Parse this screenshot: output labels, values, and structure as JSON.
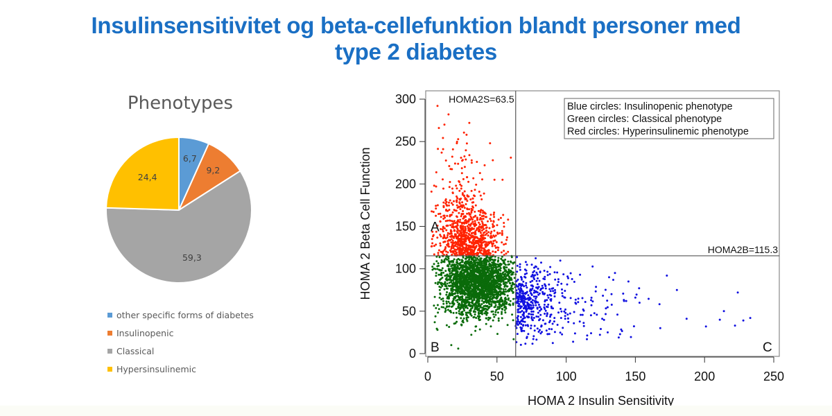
{
  "page": {
    "title_line1": "Insulinsensitivitet og beta-cellefunktion blandt personer med",
    "title_line2": "type 2 diabetes"
  },
  "chart_data": [
    {
      "type": "pie",
      "title": "Phenotypes",
      "start_angle_deg": 0,
      "direction": "clockwise",
      "slices": [
        {
          "label": "other specific forms of diabetes",
          "value": 6.7,
          "display": "6,7",
          "color": "#5b9bd5"
        },
        {
          "label": "Insulinopenic",
          "value": 9.2,
          "display": "9,2",
          "color": "#ed7d31"
        },
        {
          "label": "Classical",
          "value": 59.3,
          "display": "59,3",
          "color": "#a5a5a5"
        },
        {
          "label": "Hypersinsulinemic",
          "value": 24.4,
          "display": "24,4",
          "color": "#ffc000"
        }
      ],
      "legend_position": "bottom"
    },
    {
      "type": "scatter",
      "xlabel": "HOMA 2 Insulin Sensitivity",
      "ylabel": "HOMA 2 Beta Cell Function",
      "xlim": [
        0,
        250
      ],
      "ylim": [
        0,
        300
      ],
      "xticks": [
        0,
        50,
        100,
        150,
        200,
        250
      ],
      "yticks": [
        0,
        50,
        100,
        150,
        200,
        250,
        300
      ],
      "grid": false,
      "thresholds": {
        "homa2s": {
          "value": 63.5,
          "label": "HOMA2S=63.5"
        },
        "homa2b": {
          "value": 115.3,
          "label": "HOMA2B=115.3"
        }
      },
      "region_labels": [
        "A",
        "B",
        "C"
      ],
      "legend_position": "top-right",
      "legend_lines": [
        "Blue circles: Insulinopenic phenotype",
        "Green circles: Classical phenotype",
        "Red circles: Hyperinsulinemic phenotype"
      ],
      "series": [
        {
          "name": "Hyperinsulinemic phenotype",
          "color": "#ff2200",
          "region": "x < 63.5, y > 115.3",
          "approx_count": 900,
          "center": [
            28,
            135
          ],
          "sample_outliers": [
            [
              7,
              292
            ],
            [
              15,
              282
            ],
            [
              12,
              270
            ],
            [
              8,
              266
            ],
            [
              30,
              272
            ],
            [
              28,
              258
            ],
            [
              21,
              248
            ],
            [
              45,
              248
            ],
            [
              47,
              228
            ],
            [
              60,
              231
            ],
            [
              6,
              197
            ],
            [
              10,
              237
            ],
            [
              54,
              205
            ],
            [
              58,
              158
            ]
          ]
        },
        {
          "name": "Classical phenotype",
          "color": "#0a6b0a",
          "region": "x < 63.5, y < 115.3",
          "approx_count": 2200,
          "center": [
            36,
            85
          ],
          "sample_outliers": [
            [
              5,
              37
            ],
            [
              7,
              28
            ],
            [
              17,
              10
            ],
            [
              22,
              6
            ],
            [
              9,
              70
            ],
            [
              12,
              108
            ],
            [
              62,
              17
            ]
          ]
        },
        {
          "name": "Insulinopenic phenotype",
          "color": "#1010e0",
          "region": "x > 63.5, y < 115.3",
          "approx_count": 500,
          "center": [
            72,
            60
          ],
          "sample_outliers": [
            [
              105,
              14
            ],
            [
              115,
              17
            ],
            [
              130,
              25
            ],
            [
              131,
              90
            ],
            [
              134,
              87
            ],
            [
              145,
              85
            ],
            [
              150,
              66
            ],
            [
              153,
              60
            ],
            [
              168,
              30
            ],
            [
              180,
              75
            ],
            [
              187,
              41
            ],
            [
              201,
              32
            ],
            [
              211,
              40
            ],
            [
              214,
              50
            ],
            [
              222,
              33
            ],
            [
              224,
              72
            ],
            [
              228,
              39
            ],
            [
              233,
              42
            ],
            [
              138,
              19
            ],
            [
              125,
              29
            ],
            [
              118,
              24
            ],
            [
              110,
              93
            ],
            [
              101,
              91
            ]
          ]
        }
      ]
    }
  ]
}
